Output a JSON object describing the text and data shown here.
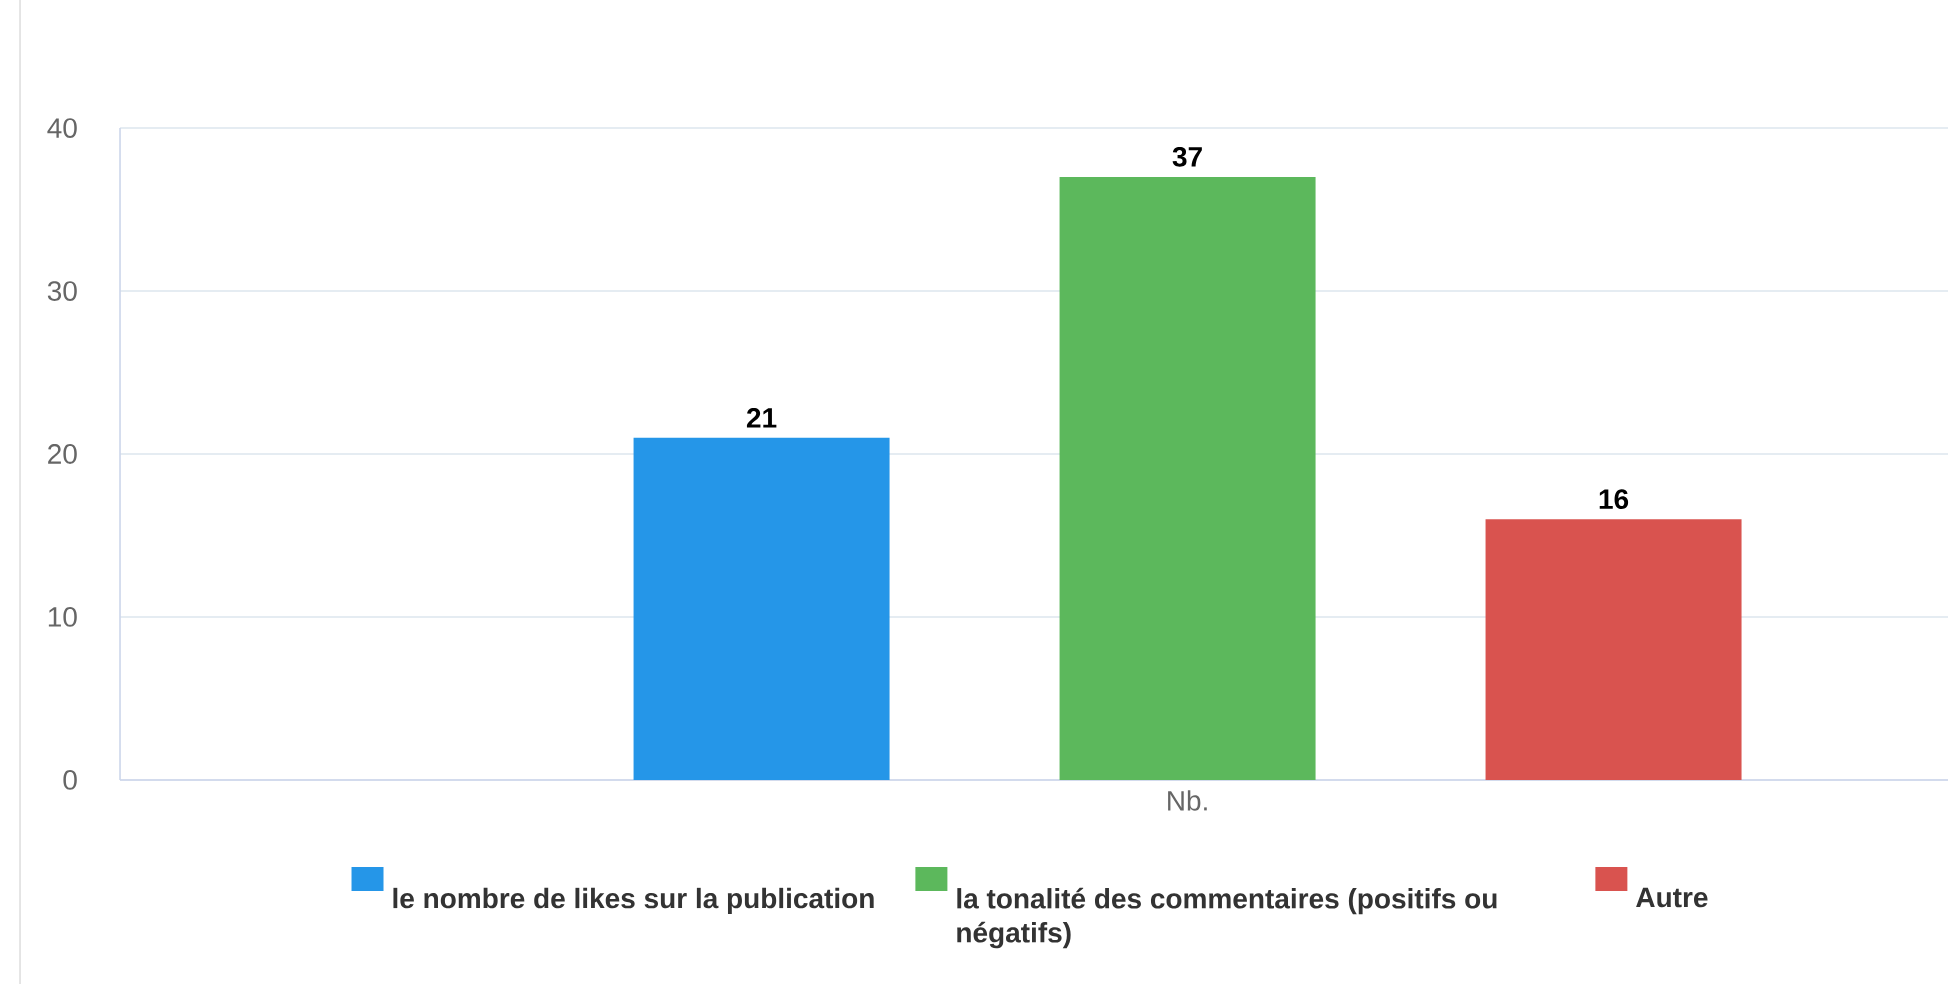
{
  "chart_data": {
    "type": "bar",
    "categories": [
      "Nb."
    ],
    "series": [
      {
        "name": "le nombre de likes sur la publication",
        "color": "#2596e8",
        "values": [
          21
        ]
      },
      {
        "name": "la tonalité des commentaires (positifs ou négatifs)",
        "color": "#5cb85c",
        "values": [
          37
        ]
      },
      {
        "name": "Autre",
        "color": "#d9534f",
        "values": [
          16
        ]
      }
    ],
    "ylim": [
      0,
      40
    ],
    "yticks": [
      0,
      10,
      20,
      30,
      40
    ],
    "grid": "y",
    "legend": "bottom",
    "data_labels": true
  }
}
